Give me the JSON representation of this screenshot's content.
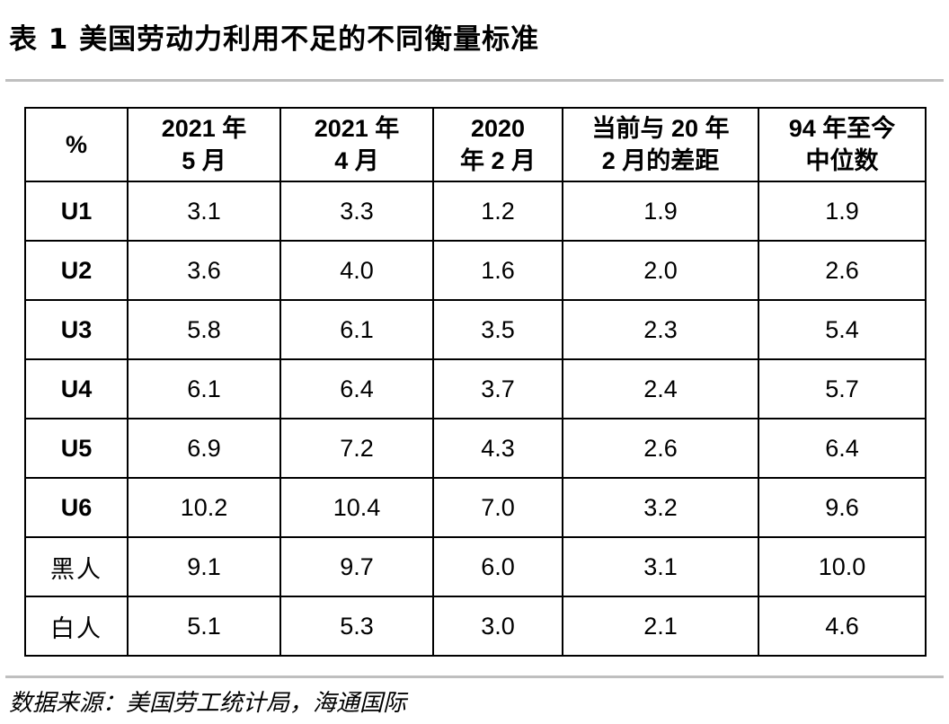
{
  "title": "表 1 美国劳动力利用不足的不同衡量标准",
  "table": {
    "corner": "%",
    "columns": [
      {
        "line1": "2021 年",
        "line2": "5 月"
      },
      {
        "line1": "2021 年",
        "line2": "4 月"
      },
      {
        "line1": "2020",
        "line2": "年 2 月"
      },
      {
        "line1": "当前与 20 年",
        "line2": "2 月的差距"
      },
      {
        "line1": "94 年至今",
        "line2": "中位数"
      }
    ],
    "rows": [
      {
        "label": "U1",
        "values": [
          "3.1",
          "3.3",
          "1.2",
          "1.9",
          "1.9"
        ]
      },
      {
        "label": "U2",
        "values": [
          "3.6",
          "4.0",
          "1.6",
          "2.0",
          "2.6"
        ]
      },
      {
        "label": "U3",
        "values": [
          "5.8",
          "6.1",
          "3.5",
          "2.3",
          "5.4"
        ]
      },
      {
        "label": "U4",
        "values": [
          "6.1",
          "6.4",
          "3.7",
          "2.4",
          "5.7"
        ]
      },
      {
        "label": "U5",
        "values": [
          "6.9",
          "7.2",
          "4.3",
          "2.6",
          "6.4"
        ]
      },
      {
        "label": "U6",
        "values": [
          "10.2",
          "10.4",
          "7.0",
          "3.2",
          "9.6"
        ]
      },
      {
        "label": "黑人",
        "values": [
          "9.1",
          "9.7",
          "6.0",
          "3.1",
          "10.0"
        ]
      },
      {
        "label": "白人",
        "values": [
          "5.1",
          "5.3",
          "3.0",
          "2.1",
          "4.6"
        ]
      }
    ]
  },
  "source": "数据来源：美国劳工统计局，海通国际"
}
